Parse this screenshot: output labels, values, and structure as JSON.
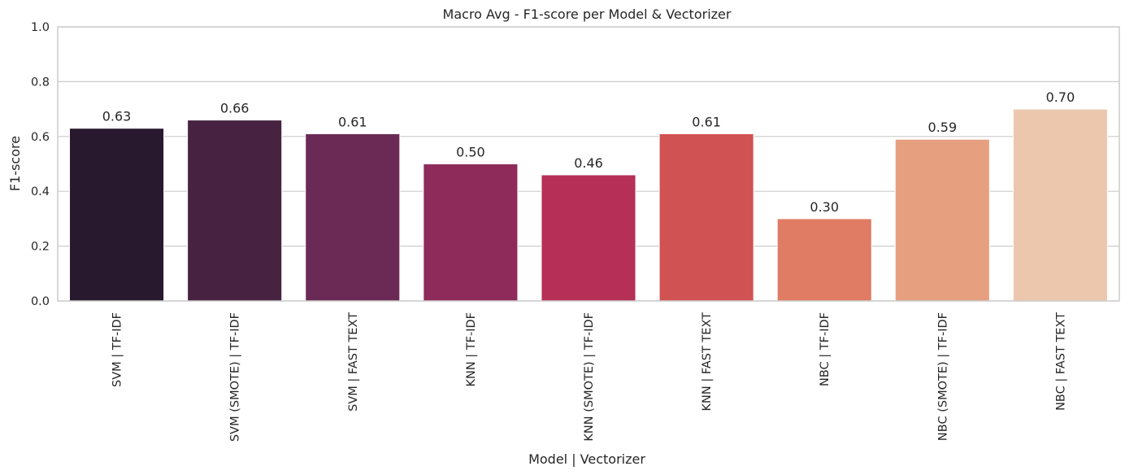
{
  "chart_data": {
    "type": "bar",
    "title": "Macro Avg - F1-score per Model & Vectorizer",
    "xlabel": "Model | Vectorizer",
    "ylabel": "F1-score",
    "ylim": [
      0,
      1.0
    ],
    "yticks": [
      "0.0",
      "0.2",
      "0.4",
      "0.6",
      "0.8",
      "1.0"
    ],
    "grid": "horizontal",
    "categories": [
      "SVM | TF-IDF",
      "SVM (SMOTE) | TF-IDF",
      "SVM | FAST TEXT",
      "KNN | TF-IDF",
      "KNN (SMOTE) | TF-IDF",
      "KNN | FAST TEXT",
      "NBC | TF-IDF",
      "NBC (SMOTE) | TF-IDF",
      "NBC | FAST TEXT"
    ],
    "values": [
      0.63,
      0.66,
      0.61,
      0.5,
      0.46,
      0.61,
      0.3,
      0.59,
      0.7
    ],
    "value_labels": [
      "0.63",
      "0.66",
      "0.61",
      "0.50",
      "0.46",
      "0.61",
      "0.30",
      "0.59",
      "0.70"
    ],
    "colors": [
      "#28192f",
      "#472341",
      "#6b2a55",
      "#8f2b5b",
      "#b52f56",
      "#d15252",
      "#df7c63",
      "#e6a080",
      "#ecc7ae"
    ]
  }
}
